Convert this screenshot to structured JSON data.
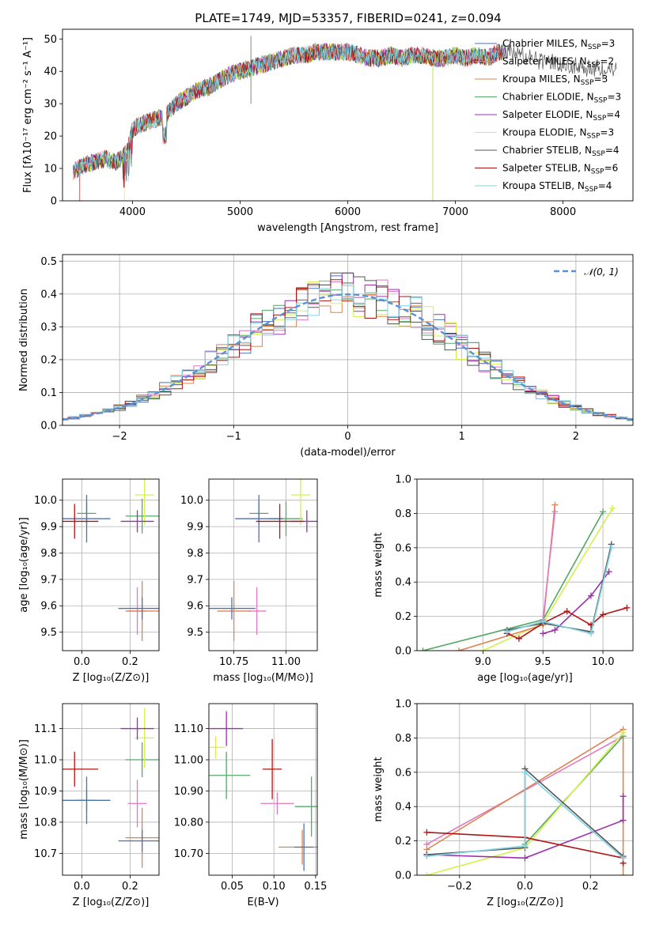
{
  "figure": {
    "title": "PLATE=1749, MJD=53357, FIBERID=0241, z=0.094"
  },
  "chart_data": [
    {
      "id": "spectrum",
      "type": "line",
      "xlabel": "wavelength [Angstrom, rest frame]",
      "ylabel": "Flux [fλ10⁻¹⁷ erg cm⁻² s⁻¹ A⁻¹]",
      "xlim": [
        3350,
        8650
      ],
      "ylim": [
        0,
        53
      ],
      "xticks": [
        4000,
        5000,
        6000,
        7000,
        8000
      ],
      "yticks": [
        0,
        10,
        20,
        30,
        40,
        50
      ],
      "grid": false,
      "legend_position": "right",
      "series": [
        {
          "name": "Chabrier MILES, N_SSP=3",
          "color": "#4c72b0"
        },
        {
          "name": "Salpeter MILES, N_SSP=2",
          "color": "#e377c2"
        },
        {
          "name": "Kroupa MILES, N_SSP=3",
          "color": "#dd8452"
        },
        {
          "name": "Chabrier ELODIE, N_SSP=3",
          "color": "#55a868"
        },
        {
          "name": "Salpeter ELODIE, N_SSP=4",
          "color": "#9b30ae"
        },
        {
          "name": "Kroupa ELODIE, N_SSP=3",
          "color": "#d6f04a"
        },
        {
          "name": "Chabrier STELIB, N_SSP=4",
          "color": "#555555"
        },
        {
          "name": "Salpeter STELIB, N_SSP=6",
          "color": "#b01515"
        },
        {
          "name": "Kroupa STELIB, N_SSP=4",
          "color": "#7fd3e6"
        }
      ],
      "envelope": {
        "x": [
          3450,
          3550,
          3650,
          3750,
          3850,
          3950,
          4000,
          4100,
          4200,
          4300,
          4400,
          4500,
          4600,
          4700,
          4800,
          4900,
          5000,
          5100,
          5200,
          5300,
          5400,
          5500,
          5600,
          5700,
          5800,
          5900,
          6000,
          6100,
          6200,
          6300,
          6400,
          6500,
          6600,
          6700,
          6800,
          6900,
          7000,
          7100,
          7200,
          7300,
          7400,
          7500,
          7600,
          7700,
          7800,
          7900,
          8000,
          8100,
          8200,
          8300,
          8400,
          8500
        ],
        "y": [
          9,
          11,
          12,
          13,
          12,
          15,
          22,
          24,
          25,
          26,
          30,
          32,
          34,
          35,
          37,
          39,
          40,
          41,
          42,
          43,
          44,
          45,
          45,
          46,
          46,
          46,
          46,
          45,
          44,
          44,
          45,
          44,
          45,
          45,
          44,
          44,
          45,
          44,
          45,
          44,
          46,
          46,
          45,
          44,
          43,
          43,
          42,
          42,
          41,
          41,
          40,
          40
        ]
      }
    },
    {
      "id": "residuals",
      "type": "line",
      "xlabel": "(data-model)/error",
      "ylabel": "Normed distribution",
      "xlim": [
        -2.5,
        2.5
      ],
      "ylim": [
        0,
        0.52
      ],
      "xticks": [
        -2,
        -1,
        0,
        1,
        2
      ],
      "yticks": [
        0.0,
        0.1,
        0.2,
        0.3,
        0.4,
        0.5
      ],
      "grid": true,
      "legend_position": "top-right",
      "reference": {
        "name": "𝒩(0, 1)",
        "color": "#5b8fd6",
        "mu": 0,
        "sigma": 1
      }
    },
    {
      "id": "age-vs-z",
      "type": "scatter",
      "xlabel": "Z [log₁₀(Z/Z⊙)]",
      "ylabel": "age  [log₁₀(age/yr)]",
      "xlim": [
        -0.08,
        0.32
      ],
      "ylim": [
        9.43,
        10.08
      ],
      "xticks": [
        0.0,
        0.2
      ],
      "yticks": [
        9.5,
        9.6,
        9.7,
        9.8,
        9.9,
        10.0
      ],
      "grid": true,
      "points": [
        {
          "x": 0.02,
          "y": 9.95,
          "color": "#55a868"
        },
        {
          "x": 0.25,
          "y": 9.94,
          "color": "#55a868"
        },
        {
          "x": 0.02,
          "y": 9.93,
          "color": "#4c72b0"
        },
        {
          "x": 0.26,
          "y": 10.02,
          "color": "#d6f04a"
        },
        {
          "x": 0.23,
          "y": 9.92,
          "color": "#9b30ae"
        },
        {
          "x": -0.03,
          "y": 9.92,
          "color": "#b01515"
        },
        {
          "x": 0.23,
          "y": 9.58,
          "color": "#e377c2"
        },
        {
          "x": 0.25,
          "y": 9.58,
          "color": "#dd8452"
        },
        {
          "x": 0.25,
          "y": 9.59,
          "color": "#4c72b0"
        }
      ]
    },
    {
      "id": "age-vs-mass",
      "type": "scatter",
      "xlabel": "mass [log₁₀(M/M⊙)]",
      "ylabel": "",
      "xlim": [
        10.63,
        11.15
      ],
      "ylim": [
        9.43,
        10.08
      ],
      "xticks": [
        10.75,
        11.0
      ],
      "yticks": [
        9.5,
        9.6,
        9.7,
        9.8,
        9.9,
        10.0
      ],
      "grid": true,
      "points": [
        {
          "x": 10.87,
          "y": 9.95,
          "color": "#55a868"
        },
        {
          "x": 11.0,
          "y": 9.93,
          "color": "#55a868"
        },
        {
          "x": 10.87,
          "y": 9.93,
          "color": "#4c72b0"
        },
        {
          "x": 11.07,
          "y": 10.02,
          "color": "#d6f04a"
        },
        {
          "x": 11.1,
          "y": 9.92,
          "color": "#9b30ae"
        },
        {
          "x": 10.97,
          "y": 9.92,
          "color": "#b01515"
        },
        {
          "x": 10.86,
          "y": 9.58,
          "color": "#e377c2"
        },
        {
          "x": 10.75,
          "y": 9.58,
          "color": "#dd8452"
        },
        {
          "x": 10.74,
          "y": 9.59,
          "color": "#4c72b0"
        }
      ]
    },
    {
      "id": "weight-vs-age",
      "type": "line",
      "xlabel": "age  [log₁₀(age/yr)]",
      "ylabel": "mass weight",
      "xlim": [
        8.45,
        10.25
      ],
      "ylim": [
        0,
        1.0
      ],
      "xticks": [
        9.0,
        9.5,
        10.0
      ],
      "yticks": [
        0.0,
        0.2,
        0.4,
        0.6,
        0.8,
        1.0
      ],
      "grid": true,
      "series": [
        {
          "color": "#55a868",
          "x": [
            8.5,
            9.5,
            10.0
          ],
          "y": [
            0.0,
            0.18,
            0.81
          ]
        },
        {
          "color": "#d6f04a",
          "x": [
            9.0,
            9.5,
            10.08
          ],
          "y": [
            0.0,
            0.16,
            0.83
          ]
        },
        {
          "color": "#dd8452",
          "x": [
            8.8,
            9.5,
            9.6
          ],
          "y": [
            0.0,
            0.15,
            0.85
          ]
        },
        {
          "color": "#e377c2",
          "x": [
            9.5,
            9.6
          ],
          "y": [
            0.18,
            0.81
          ]
        },
        {
          "color": "#9b30ae",
          "x": [
            9.5,
            9.6,
            9.9,
            10.05
          ],
          "y": [
            0.1,
            0.12,
            0.32,
            0.46
          ]
        },
        {
          "color": "#b01515",
          "x": [
            9.2,
            9.3,
            9.5,
            9.7,
            9.9,
            10.0,
            10.2
          ],
          "y": [
            0.1,
            0.07,
            0.16,
            0.23,
            0.15,
            0.21,
            0.25
          ]
        },
        {
          "color": "#555555",
          "x": [
            9.2,
            9.5,
            9.9,
            10.07
          ],
          "y": [
            0.12,
            0.16,
            0.11,
            0.62
          ]
        },
        {
          "color": "#7fd3e6",
          "x": [
            9.2,
            9.5,
            9.9,
            10.07
          ],
          "y": [
            0.11,
            0.17,
            0.1,
            0.6
          ]
        }
      ]
    },
    {
      "id": "mass-vs-z",
      "type": "scatter",
      "xlabel": "Z [log₁₀(Z/Z⊙)]",
      "ylabel": "mass [log₁₀(M/M⊙)]",
      "xlim": [
        -0.08,
        0.32
      ],
      "ylim": [
        10.63,
        11.18
      ],
      "xticks": [
        0.0,
        0.2
      ],
      "yticks": [
        10.7,
        10.8,
        10.9,
        11.0,
        11.1
      ],
      "grid": true,
      "points": [
        {
          "x": 0.02,
          "y": 10.87,
          "color": "#55a868"
        },
        {
          "x": 0.25,
          "y": 11.0,
          "color": "#55a868"
        },
        {
          "x": 0.02,
          "y": 10.87,
          "color": "#4c72b0"
        },
        {
          "x": 0.26,
          "y": 11.07,
          "color": "#d6f04a"
        },
        {
          "x": 0.23,
          "y": 11.1,
          "color": "#9b30ae"
        },
        {
          "x": -0.03,
          "y": 10.97,
          "color": "#b01515"
        },
        {
          "x": 0.23,
          "y": 10.86,
          "color": "#e377c2"
        },
        {
          "x": 0.25,
          "y": 10.75,
          "color": "#dd8452"
        },
        {
          "x": 0.25,
          "y": 10.74,
          "color": "#4c72b0"
        }
      ]
    },
    {
      "id": "mass-vs-ebv",
      "type": "scatter",
      "xlabel": "E(B-V)",
      "ylabel": "",
      "xlim": [
        0.022,
        0.152
      ],
      "ylim": [
        10.63,
        11.18
      ],
      "xticks": [
        0.05,
        0.1,
        0.15
      ],
      "yticks": [
        10.7,
        10.8,
        10.9,
        11.0,
        11.1
      ],
      "grid": true,
      "points": [
        {
          "x": 0.03,
          "y": 11.04,
          "color": "#d6f04a"
        },
        {
          "x": 0.043,
          "y": 11.1,
          "color": "#9b30ae"
        },
        {
          "x": 0.043,
          "y": 10.95,
          "color": "#55a868"
        },
        {
          "x": 0.098,
          "y": 10.97,
          "color": "#b01515"
        },
        {
          "x": 0.104,
          "y": 10.86,
          "color": "#e377c2"
        },
        {
          "x": 0.134,
          "y": 10.72,
          "color": "#dd8452"
        },
        {
          "x": 0.136,
          "y": 10.72,
          "color": "#4c72b0"
        },
        {
          "x": 0.145,
          "y": 10.85,
          "color": "#55a868"
        }
      ]
    },
    {
      "id": "weight-vs-z",
      "type": "line",
      "xlabel": "Z [log₁₀(Z/Z⊙)]",
      "ylabel": "mass weight",
      "xlim": [
        -0.33,
        0.33
      ],
      "ylim": [
        0,
        1.0
      ],
      "xticks": [
        -0.2,
        0.0,
        0.2
      ],
      "yticks": [
        0.0,
        0.2,
        0.4,
        0.6,
        0.8,
        1.0
      ],
      "grid": true,
      "series": [
        {
          "color": "#e377c2",
          "x": [
            -0.3,
            0.3
          ],
          "y": [
            0.18,
            0.81
          ]
        },
        {
          "color": "#dd8452",
          "x": [
            -0.3,
            0.3,
            0.3
          ],
          "y": [
            0.15,
            0.85,
            0.0
          ]
        },
        {
          "color": "#55a868",
          "x": [
            0.0,
            0.3
          ],
          "y": [
            0.18,
            0.81
          ]
        },
        {
          "color": "#d6f04a",
          "x": [
            -0.3,
            0.0,
            0.3
          ],
          "y": [
            0.0,
            0.16,
            0.83
          ]
        },
        {
          "color": "#9b30ae",
          "x": [
            -0.3,
            0.0,
            0.3,
            0.3
          ],
          "y": [
            0.12,
            0.1,
            0.32,
            0.46
          ]
        },
        {
          "color": "#b01515",
          "x": [
            -0.3,
            0.0,
            0.3,
            0.3
          ],
          "y": [
            0.25,
            0.22,
            0.1,
            0.07
          ]
        },
        {
          "color": "#555555",
          "x": [
            -0.3,
            0.0,
            0.0,
            0.3
          ],
          "y": [
            0.12,
            0.16,
            0.62,
            0.11
          ]
        },
        {
          "color": "#7fd3e6",
          "x": [
            -0.3,
            0.0,
            0.0,
            0.3
          ],
          "y": [
            0.11,
            0.17,
            0.6,
            0.1
          ]
        }
      ]
    }
  ]
}
